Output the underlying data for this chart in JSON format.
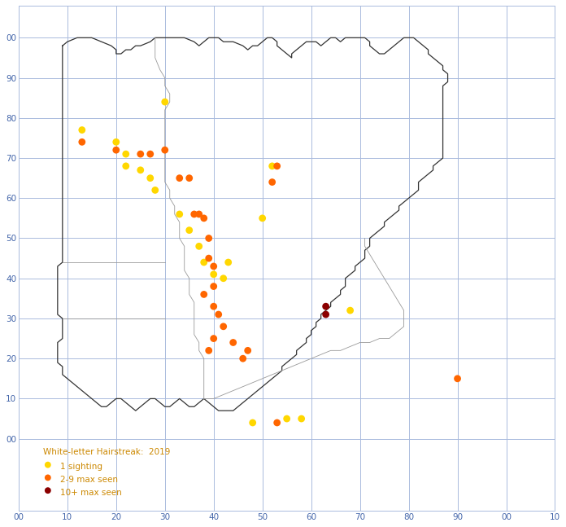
{
  "title": "White-letter Hairstreak:  2019",
  "legend_labels": [
    "1 sighting",
    "2-9 max seen",
    "10+ max seen"
  ],
  "legend_colors": [
    "#FFD700",
    "#FF6600",
    "#8B0000"
  ],
  "dot_categories": {
    "yellow": {
      "color": "#FFD700",
      "points": [
        [
          13,
          77
        ],
        [
          20,
          74
        ],
        [
          22,
          71
        ],
        [
          22,
          68
        ],
        [
          25,
          67
        ],
        [
          27,
          65
        ],
        [
          28,
          62
        ],
        [
          30,
          84
        ],
        [
          33,
          56
        ],
        [
          35,
          52
        ],
        [
          37,
          48
        ],
        [
          38,
          44
        ],
        [
          40,
          41
        ],
        [
          42,
          40
        ],
        [
          43,
          44
        ],
        [
          50,
          55
        ],
        [
          52,
          68
        ],
        [
          55,
          5
        ],
        [
          58,
          5
        ],
        [
          68,
          32
        ],
        [
          48,
          4
        ]
      ]
    },
    "orange": {
      "color": "#FF6600",
      "points": [
        [
          13,
          74
        ],
        [
          20,
          72
        ],
        [
          25,
          71
        ],
        [
          27,
          71
        ],
        [
          30,
          72
        ],
        [
          33,
          65
        ],
        [
          35,
          65
        ],
        [
          36,
          56
        ],
        [
          37,
          56
        ],
        [
          38,
          36
        ],
        [
          38,
          55
        ],
        [
          39,
          50
        ],
        [
          39,
          45
        ],
        [
          40,
          43
        ],
        [
          40,
          38
        ],
        [
          40,
          33
        ],
        [
          41,
          31
        ],
        [
          42,
          28
        ],
        [
          44,
          24
        ],
        [
          46,
          20
        ],
        [
          47,
          22
        ],
        [
          53,
          68
        ],
        [
          52,
          64
        ],
        [
          40,
          25
        ],
        [
          39,
          22
        ],
        [
          53,
          4
        ],
        [
          90,
          15
        ]
      ]
    },
    "darkred": {
      "color": "#8B0000",
      "points": [
        [
          63,
          33
        ],
        [
          63,
          31
        ]
      ]
    }
  },
  "outer_boundary": [
    [
      9,
      98
    ],
    [
      10,
      99
    ],
    [
      12,
      100
    ],
    [
      15,
      100
    ],
    [
      17,
      99
    ],
    [
      19,
      98
    ],
    [
      20,
      97
    ],
    [
      20,
      96
    ],
    [
      21,
      96
    ],
    [
      22,
      97
    ],
    [
      23,
      97
    ],
    [
      24,
      98
    ],
    [
      25,
      98
    ],
    [
      27,
      99
    ],
    [
      28,
      100
    ],
    [
      30,
      100
    ],
    [
      32,
      100
    ],
    [
      34,
      100
    ],
    [
      36,
      99
    ],
    [
      37,
      98
    ],
    [
      38,
      99
    ],
    [
      39,
      100
    ],
    [
      40,
      100
    ],
    [
      41,
      100
    ],
    [
      42,
      99
    ],
    [
      43,
      99
    ],
    [
      44,
      99
    ],
    [
      46,
      98
    ],
    [
      47,
      97
    ],
    [
      48,
      98
    ],
    [
      49,
      98
    ],
    [
      50,
      99
    ],
    [
      51,
      100
    ],
    [
      52,
      100
    ],
    [
      53,
      99
    ],
    [
      53,
      98
    ],
    [
      54,
      97
    ],
    [
      55,
      96
    ],
    [
      56,
      95
    ],
    [
      56,
      96
    ],
    [
      57,
      97
    ],
    [
      58,
      98
    ],
    [
      59,
      99
    ],
    [
      60,
      99
    ],
    [
      61,
      99
    ],
    [
      62,
      98
    ],
    [
      63,
      99
    ],
    [
      64,
      100
    ],
    [
      65,
      100
    ],
    [
      66,
      99
    ],
    [
      67,
      100
    ],
    [
      68,
      100
    ],
    [
      69,
      100
    ],
    [
      70,
      100
    ],
    [
      71,
      100
    ],
    [
      72,
      99
    ],
    [
      72,
      98
    ],
    [
      73,
      97
    ],
    [
      74,
      96
    ],
    [
      75,
      96
    ],
    [
      76,
      97
    ],
    [
      77,
      98
    ],
    [
      78,
      99
    ],
    [
      79,
      100
    ],
    [
      80,
      100
    ],
    [
      81,
      100
    ],
    [
      82,
      99
    ],
    [
      83,
      98
    ],
    [
      84,
      97
    ],
    [
      84,
      96
    ],
    [
      85,
      95
    ],
    [
      86,
      94
    ],
    [
      87,
      93
    ],
    [
      87,
      92
    ],
    [
      88,
      91
    ],
    [
      88,
      90
    ],
    [
      88,
      89
    ],
    [
      87,
      88
    ],
    [
      87,
      87
    ],
    [
      87,
      86
    ],
    [
      87,
      85
    ],
    [
      87,
      84
    ],
    [
      87,
      83
    ],
    [
      87,
      82
    ],
    [
      87,
      81
    ],
    [
      87,
      80
    ],
    [
      87,
      79
    ],
    [
      87,
      78
    ],
    [
      87,
      77
    ],
    [
      87,
      76
    ],
    [
      87,
      75
    ],
    [
      87,
      74
    ],
    [
      87,
      73
    ],
    [
      87,
      72
    ],
    [
      87,
      71
    ],
    [
      87,
      70
    ],
    [
      86,
      69
    ],
    [
      85,
      68
    ],
    [
      85,
      67
    ],
    [
      84,
      66
    ],
    [
      83,
      65
    ],
    [
      82,
      64
    ],
    [
      82,
      63
    ],
    [
      82,
      62
    ],
    [
      81,
      61
    ],
    [
      80,
      60
    ],
    [
      79,
      59
    ],
    [
      78,
      58
    ],
    [
      78,
      57
    ],
    [
      77,
      56
    ],
    [
      76,
      55
    ],
    [
      75,
      54
    ],
    [
      75,
      53
    ],
    [
      74,
      52
    ],
    [
      73,
      51
    ],
    [
      72,
      50
    ],
    [
      72,
      49
    ],
    [
      72,
      48
    ],
    [
      71,
      47
    ],
    [
      71,
      46
    ],
    [
      71,
      45
    ],
    [
      70,
      44
    ],
    [
      69,
      43
    ],
    [
      69,
      42
    ],
    [
      68,
      41
    ],
    [
      67,
      40
    ],
    [
      67,
      39
    ],
    [
      67,
      38
    ],
    [
      66,
      37
    ],
    [
      66,
      36
    ],
    [
      65,
      35
    ],
    [
      64,
      34
    ],
    [
      64,
      33
    ],
    [
      63,
      32
    ],
    [
      62,
      31
    ],
    [
      62,
      30
    ],
    [
      61,
      29
    ],
    [
      61,
      28
    ],
    [
      60,
      27
    ],
    [
      60,
      26
    ],
    [
      59,
      25
    ],
    [
      59,
      24
    ],
    [
      58,
      23
    ],
    [
      57,
      22
    ],
    [
      57,
      21
    ],
    [
      56,
      20
    ],
    [
      55,
      19
    ],
    [
      54,
      18
    ],
    [
      54,
      17
    ],
    [
      53,
      16
    ],
    [
      52,
      15
    ],
    [
      51,
      14
    ],
    [
      50,
      13
    ],
    [
      49,
      12
    ],
    [
      48,
      11
    ],
    [
      47,
      10
    ],
    [
      46,
      9
    ],
    [
      45,
      8
    ],
    [
      44,
      7
    ],
    [
      43,
      7
    ],
    [
      42,
      7
    ],
    [
      41,
      7
    ],
    [
      40,
      8
    ],
    [
      39,
      9
    ],
    [
      38,
      10
    ],
    [
      37,
      9
    ],
    [
      36,
      8
    ],
    [
      35,
      8
    ],
    [
      34,
      9
    ],
    [
      33,
      10
    ],
    [
      32,
      9
    ],
    [
      31,
      8
    ],
    [
      30,
      8
    ],
    [
      29,
      9
    ],
    [
      28,
      10
    ],
    [
      27,
      10
    ],
    [
      26,
      9
    ],
    [
      25,
      8
    ],
    [
      24,
      7
    ],
    [
      23,
      8
    ],
    [
      22,
      9
    ],
    [
      21,
      10
    ],
    [
      20,
      10
    ],
    [
      19,
      9
    ],
    [
      18,
      8
    ],
    [
      17,
      8
    ],
    [
      16,
      9
    ],
    [
      15,
      10
    ],
    [
      14,
      11
    ],
    [
      13,
      12
    ],
    [
      12,
      13
    ],
    [
      11,
      14
    ],
    [
      10,
      15
    ],
    [
      9,
      16
    ],
    [
      9,
      17
    ],
    [
      9,
      18
    ],
    [
      8,
      19
    ],
    [
      8,
      20
    ],
    [
      8,
      21
    ],
    [
      8,
      22
    ],
    [
      8,
      23
    ],
    [
      8,
      24
    ],
    [
      9,
      25
    ],
    [
      9,
      26
    ],
    [
      9,
      27
    ],
    [
      9,
      28
    ],
    [
      9,
      29
    ],
    [
      9,
      30
    ],
    [
      8,
      31
    ],
    [
      8,
      32
    ],
    [
      8,
      33
    ],
    [
      8,
      34
    ],
    [
      8,
      35
    ],
    [
      8,
      36
    ],
    [
      8,
      37
    ],
    [
      8,
      38
    ],
    [
      8,
      39
    ],
    [
      8,
      40
    ],
    [
      8,
      41
    ],
    [
      8,
      42
    ],
    [
      8,
      43
    ],
    [
      9,
      44
    ],
    [
      9,
      45
    ],
    [
      9,
      46
    ],
    [
      9,
      47
    ],
    [
      9,
      48
    ],
    [
      9,
      49
    ],
    [
      9,
      50
    ],
    [
      9,
      51
    ],
    [
      9,
      52
    ],
    [
      9,
      53
    ],
    [
      9,
      54
    ],
    [
      9,
      55
    ],
    [
      9,
      56
    ],
    [
      9,
      57
    ],
    [
      9,
      58
    ],
    [
      9,
      59
    ],
    [
      9,
      60
    ],
    [
      9,
      61
    ],
    [
      9,
      62
    ],
    [
      9,
      63
    ],
    [
      9,
      64
    ],
    [
      9,
      65
    ],
    [
      9,
      66
    ],
    [
      9,
      67
    ],
    [
      9,
      68
    ],
    [
      9,
      69
    ],
    [
      9,
      70
    ],
    [
      9,
      71
    ],
    [
      9,
      72
    ],
    [
      9,
      73
    ],
    [
      9,
      74
    ],
    [
      9,
      75
    ],
    [
      9,
      76
    ],
    [
      9,
      77
    ],
    [
      9,
      78
    ],
    [
      9,
      79
    ],
    [
      9,
      80
    ],
    [
      9,
      81
    ],
    [
      9,
      82
    ],
    [
      9,
      83
    ],
    [
      9,
      84
    ],
    [
      9,
      85
    ],
    [
      9,
      86
    ],
    [
      9,
      87
    ],
    [
      9,
      88
    ],
    [
      9,
      89
    ],
    [
      9,
      90
    ],
    [
      9,
      91
    ],
    [
      9,
      92
    ],
    [
      9,
      93
    ],
    [
      9,
      94
    ],
    [
      9,
      95
    ],
    [
      9,
      96
    ],
    [
      9,
      97
    ],
    [
      9,
      98
    ]
  ],
  "inner_boundaries": [
    [
      [
        28,
        100
      ],
      [
        28,
        98
      ],
      [
        28,
        95
      ],
      [
        29,
        92
      ],
      [
        30,
        90
      ],
      [
        30,
        88
      ],
      [
        31,
        86
      ],
      [
        31,
        84
      ],
      [
        30,
        82
      ],
      [
        30,
        80
      ],
      [
        30,
        78
      ],
      [
        30,
        76
      ],
      [
        30,
        74
      ],
      [
        30,
        72
      ],
      [
        30,
        70
      ],
      [
        30,
        68
      ],
      [
        30,
        66
      ],
      [
        30,
        64
      ],
      [
        31,
        62
      ],
      [
        31,
        60
      ],
      [
        32,
        58
      ],
      [
        32,
        56
      ],
      [
        33,
        54
      ],
      [
        33,
        52
      ],
      [
        33,
        50
      ],
      [
        34,
        48
      ],
      [
        34,
        46
      ],
      [
        34,
        44
      ],
      [
        34,
        42
      ],
      [
        35,
        40
      ],
      [
        35,
        38
      ],
      [
        35,
        36
      ],
      [
        36,
        34
      ],
      [
        36,
        32
      ],
      [
        36,
        30
      ],
      [
        36,
        28
      ],
      [
        36,
        26
      ],
      [
        37,
        24
      ],
      [
        37,
        22
      ],
      [
        38,
        20
      ],
      [
        38,
        18
      ],
      [
        38,
        16
      ],
      [
        38,
        14
      ],
      [
        38,
        12
      ],
      [
        38,
        10
      ]
    ],
    [
      [
        38,
        10
      ],
      [
        40,
        10
      ],
      [
        42,
        11
      ],
      [
        44,
        12
      ],
      [
        46,
        13
      ],
      [
        48,
        14
      ],
      [
        50,
        15
      ],
      [
        52,
        16
      ],
      [
        54,
        17
      ],
      [
        56,
        18
      ],
      [
        58,
        19
      ],
      [
        60,
        20
      ],
      [
        62,
        21
      ],
      [
        64,
        22
      ],
      [
        66,
        22
      ],
      [
        68,
        23
      ],
      [
        70,
        24
      ],
      [
        72,
        24
      ],
      [
        74,
        25
      ],
      [
        76,
        25
      ],
      [
        77,
        26
      ],
      [
        78,
        27
      ],
      [
        79,
        28
      ],
      [
        79,
        30
      ],
      [
        79,
        32
      ],
      [
        78,
        34
      ],
      [
        77,
        36
      ],
      [
        76,
        38
      ],
      [
        75,
        40
      ],
      [
        74,
        42
      ],
      [
        73,
        44
      ],
      [
        72,
        46
      ],
      [
        71,
        48
      ],
      [
        71,
        50
      ]
    ],
    [
      [
        9,
        44
      ],
      [
        12,
        44
      ],
      [
        15,
        44
      ],
      [
        18,
        44
      ],
      [
        21,
        44
      ],
      [
        24,
        44
      ],
      [
        27,
        44
      ],
      [
        30,
        44
      ]
    ],
    [
      [
        9,
        30
      ],
      [
        12,
        30
      ],
      [
        15,
        30
      ],
      [
        18,
        30
      ],
      [
        21,
        30
      ],
      [
        24,
        30
      ],
      [
        27,
        30
      ],
      [
        30,
        30
      ]
    ]
  ],
  "xlim": [
    0,
    110
  ],
  "ylim": [
    -18,
    108
  ],
  "xticks": [
    0,
    10,
    20,
    30,
    40,
    50,
    60,
    70,
    80,
    90,
    100,
    110
  ],
  "yticks": [
    0,
    10,
    20,
    30,
    40,
    50,
    60,
    70,
    80,
    90,
    100
  ],
  "xticklabels": [
    "00",
    "10",
    "20",
    "30",
    "40",
    "50",
    "60",
    "70",
    "80",
    "90",
    "00",
    "10"
  ],
  "yticklabels": [
    "00",
    "10",
    "20",
    "30",
    "40",
    "50",
    "60",
    "70",
    "80",
    "90",
    "00"
  ],
  "background_color": "#FFFFFF",
  "grid_color": "#AABBDD",
  "map_line_color": "#333333",
  "inner_line_color": "#999999",
  "dot_size": 40,
  "title_color": "#CC8800",
  "legend_text_color": "#CC8800"
}
